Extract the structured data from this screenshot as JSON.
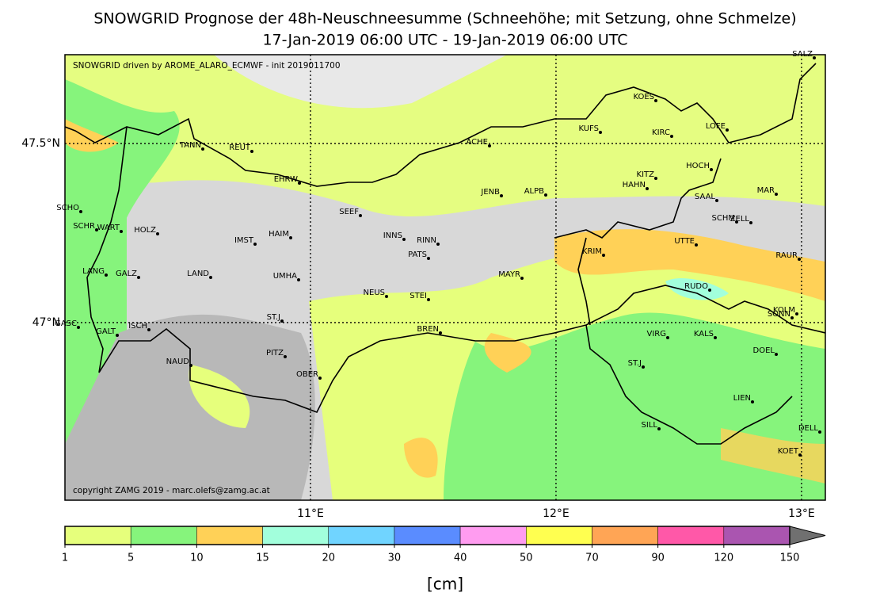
{
  "title": "SNOWGRID Prognose der 48h-Neuschneesumme (Schneehöhe; mit Setzung, ohne Schmelze)",
  "subtitle": "17-Jan-2019 06:00 UTC - 19-Jan-2019 06:00 UTC",
  "annotations": [
    "SNOWGRID driven by AROME_ALARO_ECMWF - init 2019011700",
    "copyright ZAMG 2019 - marc.olefs@zamg.ac.at"
  ],
  "map": {
    "xlim": [
      10.0,
      13.097
    ],
    "ylim": [
      46.504,
      47.748
    ],
    "xticks": [
      {
        "value": 11,
        "label": "11°E"
      },
      {
        "value": 12,
        "label": "12°E"
      },
      {
        "value": 13,
        "label": "13°E"
      }
    ],
    "yticks": [
      {
        "value": 47.5,
        "label": "47.5°N"
      },
      {
        "value": 47,
        "label": "47°N"
      }
    ],
    "grid": true,
    "stations": [
      "SALZ",
      "KOES",
      "LOFE",
      "KUFS",
      "KIRC",
      "ACHE",
      "TANN",
      "REUT",
      "HOCH",
      "KITZ",
      "EHRW",
      "HAHN",
      "JENB",
      "ALPB",
      "MAR",
      "SAAL",
      "SCHO",
      "SEEF",
      "SCHM",
      "ZELL",
      "SCHR",
      "WART",
      "HOLZ",
      "HAIM",
      "INNS",
      "RINN",
      "IMST",
      "UTTE",
      "KRIM",
      "PATS",
      "RAUR",
      "LANG",
      "GALZ",
      "LAND",
      "UMHA",
      "MAYR",
      "RUDO",
      "NEUS",
      "STEI",
      "KOLM",
      "SONN",
      "ST.J",
      "GASC",
      "ISCH",
      "GALT",
      "BREN",
      "VIRG",
      "KALS",
      "DOEL",
      "PITZ",
      "NAUD",
      "ST.J",
      "OBER",
      "LIEN",
      "SILL",
      "DELL",
      "KOET"
    ]
  },
  "colorbar": {
    "ticks": [
      1,
      5,
      10,
      15,
      20,
      30,
      40,
      50,
      70,
      90,
      120,
      150
    ],
    "colors": [
      "#e6ff7c",
      "#86f47c",
      "#ffd157",
      "#a2ffdc",
      "#70d4ff",
      "#5a8cff",
      "#ff9cf0",
      "#ffff50",
      "#ffa555",
      "#ff58a8",
      "#aa55b0"
    ],
    "extend_color": "#707070",
    "label": "[cm]"
  }
}
